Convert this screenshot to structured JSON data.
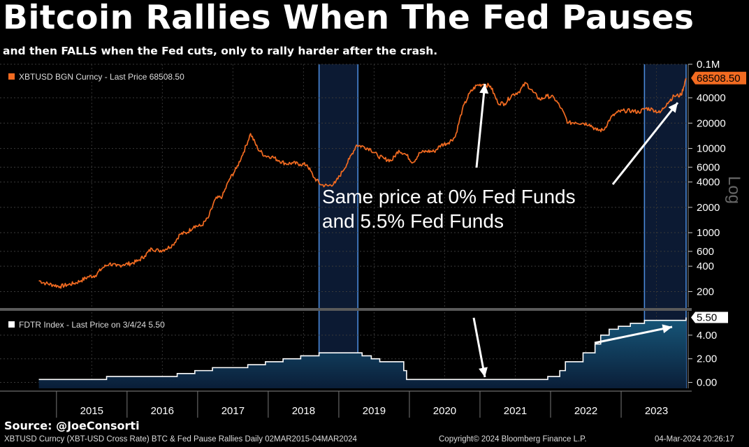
{
  "title": "Bitcoin Rallies When The Fed Pauses",
  "subtitle": "and then FALLS when the Fed cuts, only to rally harder after the crash.",
  "source": "Source: @JoeConsorti",
  "footer": {
    "left": "XBTUSD Curncy (XBT-USD Cross Rate) BTC & Fed Pause Rallies  Daily 02MAR2015-04MAR2024",
    "center": "Copyright© 2024 Bloomberg Finance L.P.",
    "right": "04-Mar-2024 20:26:17"
  },
  "colors": {
    "btc": "#f26b21",
    "pause_shade": "#0c1a33",
    "pause_line": "#4a88d8",
    "fed_fill_top": "#17577a",
    "fed_fill_bottom": "#0a1e38"
  },
  "annotation": {
    "line1": "Same price at 0% Fed Funds",
    "line2": "and 5.5% Fed Funds"
  },
  "chart_data": [
    {
      "type": "line",
      "legend": "XBTUSD BGN Curncy - Last Price 68508.50",
      "last_value_label": "68508.50",
      "y_scale": "log",
      "y_scale_label": "Log",
      "ylim": [
        130,
        100000
      ],
      "y_ticks": [
        {
          "value": 100000,
          "label": "0.1M"
        },
        {
          "value": 40000,
          "label": "40000"
        },
        {
          "value": 20000,
          "label": "20000"
        },
        {
          "value": 10000,
          "label": "10000"
        },
        {
          "value": 6000,
          "label": "6000"
        },
        {
          "value": 4000,
          "label": "4000"
        },
        {
          "value": 2000,
          "label": "2000"
        },
        {
          "value": 1000,
          "label": "1000"
        },
        {
          "value": 600,
          "label": "600"
        },
        {
          "value": 400,
          "label": "400"
        },
        {
          "value": 200,
          "label": "200"
        }
      ],
      "x": [
        2015.0,
        2015.1,
        2015.2,
        2015.3,
        2015.4,
        2015.5,
        2015.6,
        2015.7,
        2015.8,
        2015.9,
        2016.0,
        2016.1,
        2016.2,
        2016.3,
        2016.4,
        2016.5,
        2016.6,
        2016.7,
        2016.8,
        2016.9,
        2017.0,
        2017.1,
        2017.2,
        2017.3,
        2017.4,
        2017.5,
        2017.6,
        2017.7,
        2017.8,
        2017.9,
        2018.0,
        2018.1,
        2018.2,
        2018.3,
        2018.4,
        2018.5,
        2018.6,
        2018.7,
        2018.8,
        2018.9,
        2019.0,
        2019.1,
        2019.2,
        2019.3,
        2019.4,
        2019.5,
        2019.6,
        2019.7,
        2019.8,
        2019.9,
        2020.0,
        2020.1,
        2020.2,
        2020.3,
        2020.4,
        2020.5,
        2020.6,
        2020.7,
        2020.8,
        2020.9,
        2021.0,
        2021.1,
        2021.2,
        2021.3,
        2021.4,
        2021.5,
        2021.6,
        2021.7,
        2021.8,
        2021.9,
        2022.0,
        2022.1,
        2022.2,
        2022.3,
        2022.4,
        2022.5,
        2022.6,
        2022.7,
        2022.8,
        2022.9,
        2023.0,
        2023.1,
        2023.2,
        2023.3,
        2023.4,
        2023.5,
        2023.6,
        2023.7,
        2023.8,
        2023.9,
        2024.0,
        2024.1,
        2024.17
      ],
      "values": [
        270,
        250,
        240,
        230,
        240,
        250,
        270,
        300,
        310,
        380,
        430,
        400,
        420,
        430,
        460,
        530,
        650,
        610,
        640,
        720,
        960,
        1000,
        1200,
        1200,
        1500,
        2500,
        2700,
        4300,
        5800,
        9000,
        15000,
        10000,
        8200,
        8000,
        7200,
        6600,
        6700,
        6500,
        6400,
        4500,
        3700,
        3600,
        3900,
        5300,
        7500,
        11000,
        10500,
        9800,
        8200,
        7500,
        7200,
        9500,
        8500,
        6800,
        8900,
        9300,
        9200,
        11000,
        11700,
        13800,
        29000,
        45000,
        56000,
        58000,
        55000,
        35000,
        34000,
        43000,
        47000,
        60000,
        47000,
        38000,
        42000,
        40000,
        30000,
        20000,
        20500,
        20000,
        19500,
        16500,
        16500,
        23000,
        27000,
        28000,
        28000,
        27000,
        30000,
        29000,
        26500,
        34500,
        42000,
        43000,
        68508
      ]
    },
    {
      "type": "area",
      "legend": "FDTR Index - Last Price on 3/4/24 5.50",
      "last_value_label": "5.50",
      "ylim": [
        -0.5,
        6.0
      ],
      "y_ticks": [
        {
          "value": 4.0,
          "label": "4.00"
        },
        {
          "value": 2.0,
          "label": "2.00"
        },
        {
          "value": 0.0,
          "label": "0.00"
        }
      ],
      "x": [
        2015.0,
        2015.96,
        2016.96,
        2017.21,
        2017.46,
        2017.96,
        2018.21,
        2018.46,
        2018.71,
        2018.97,
        2019.58,
        2019.71,
        2019.83,
        2020.17,
        2020.21,
        2022.21,
        2022.38,
        2022.46,
        2022.71,
        2022.88,
        2022.96,
        2023.08,
        2023.21,
        2023.38,
        2023.58,
        2024.17
      ],
      "values": [
        0.25,
        0.5,
        0.75,
        1.0,
        1.25,
        1.5,
        1.75,
        2.0,
        2.25,
        2.5,
        2.25,
        2.0,
        1.75,
        1.0,
        0.25,
        0.5,
        1.0,
        1.75,
        2.5,
        3.25,
        4.0,
        4.5,
        4.75,
        5.0,
        5.25,
        5.5
      ]
    }
  ],
  "x_axis": {
    "tick_labels": [
      "2015",
      "2016",
      "2017",
      "2018",
      "2019",
      "2020",
      "2021",
      "2022",
      "2023"
    ]
  },
  "pause_periods": [
    {
      "start": 2018.97,
      "end": 2019.52
    },
    {
      "start": 2023.58,
      "end": 2024.17
    }
  ]
}
